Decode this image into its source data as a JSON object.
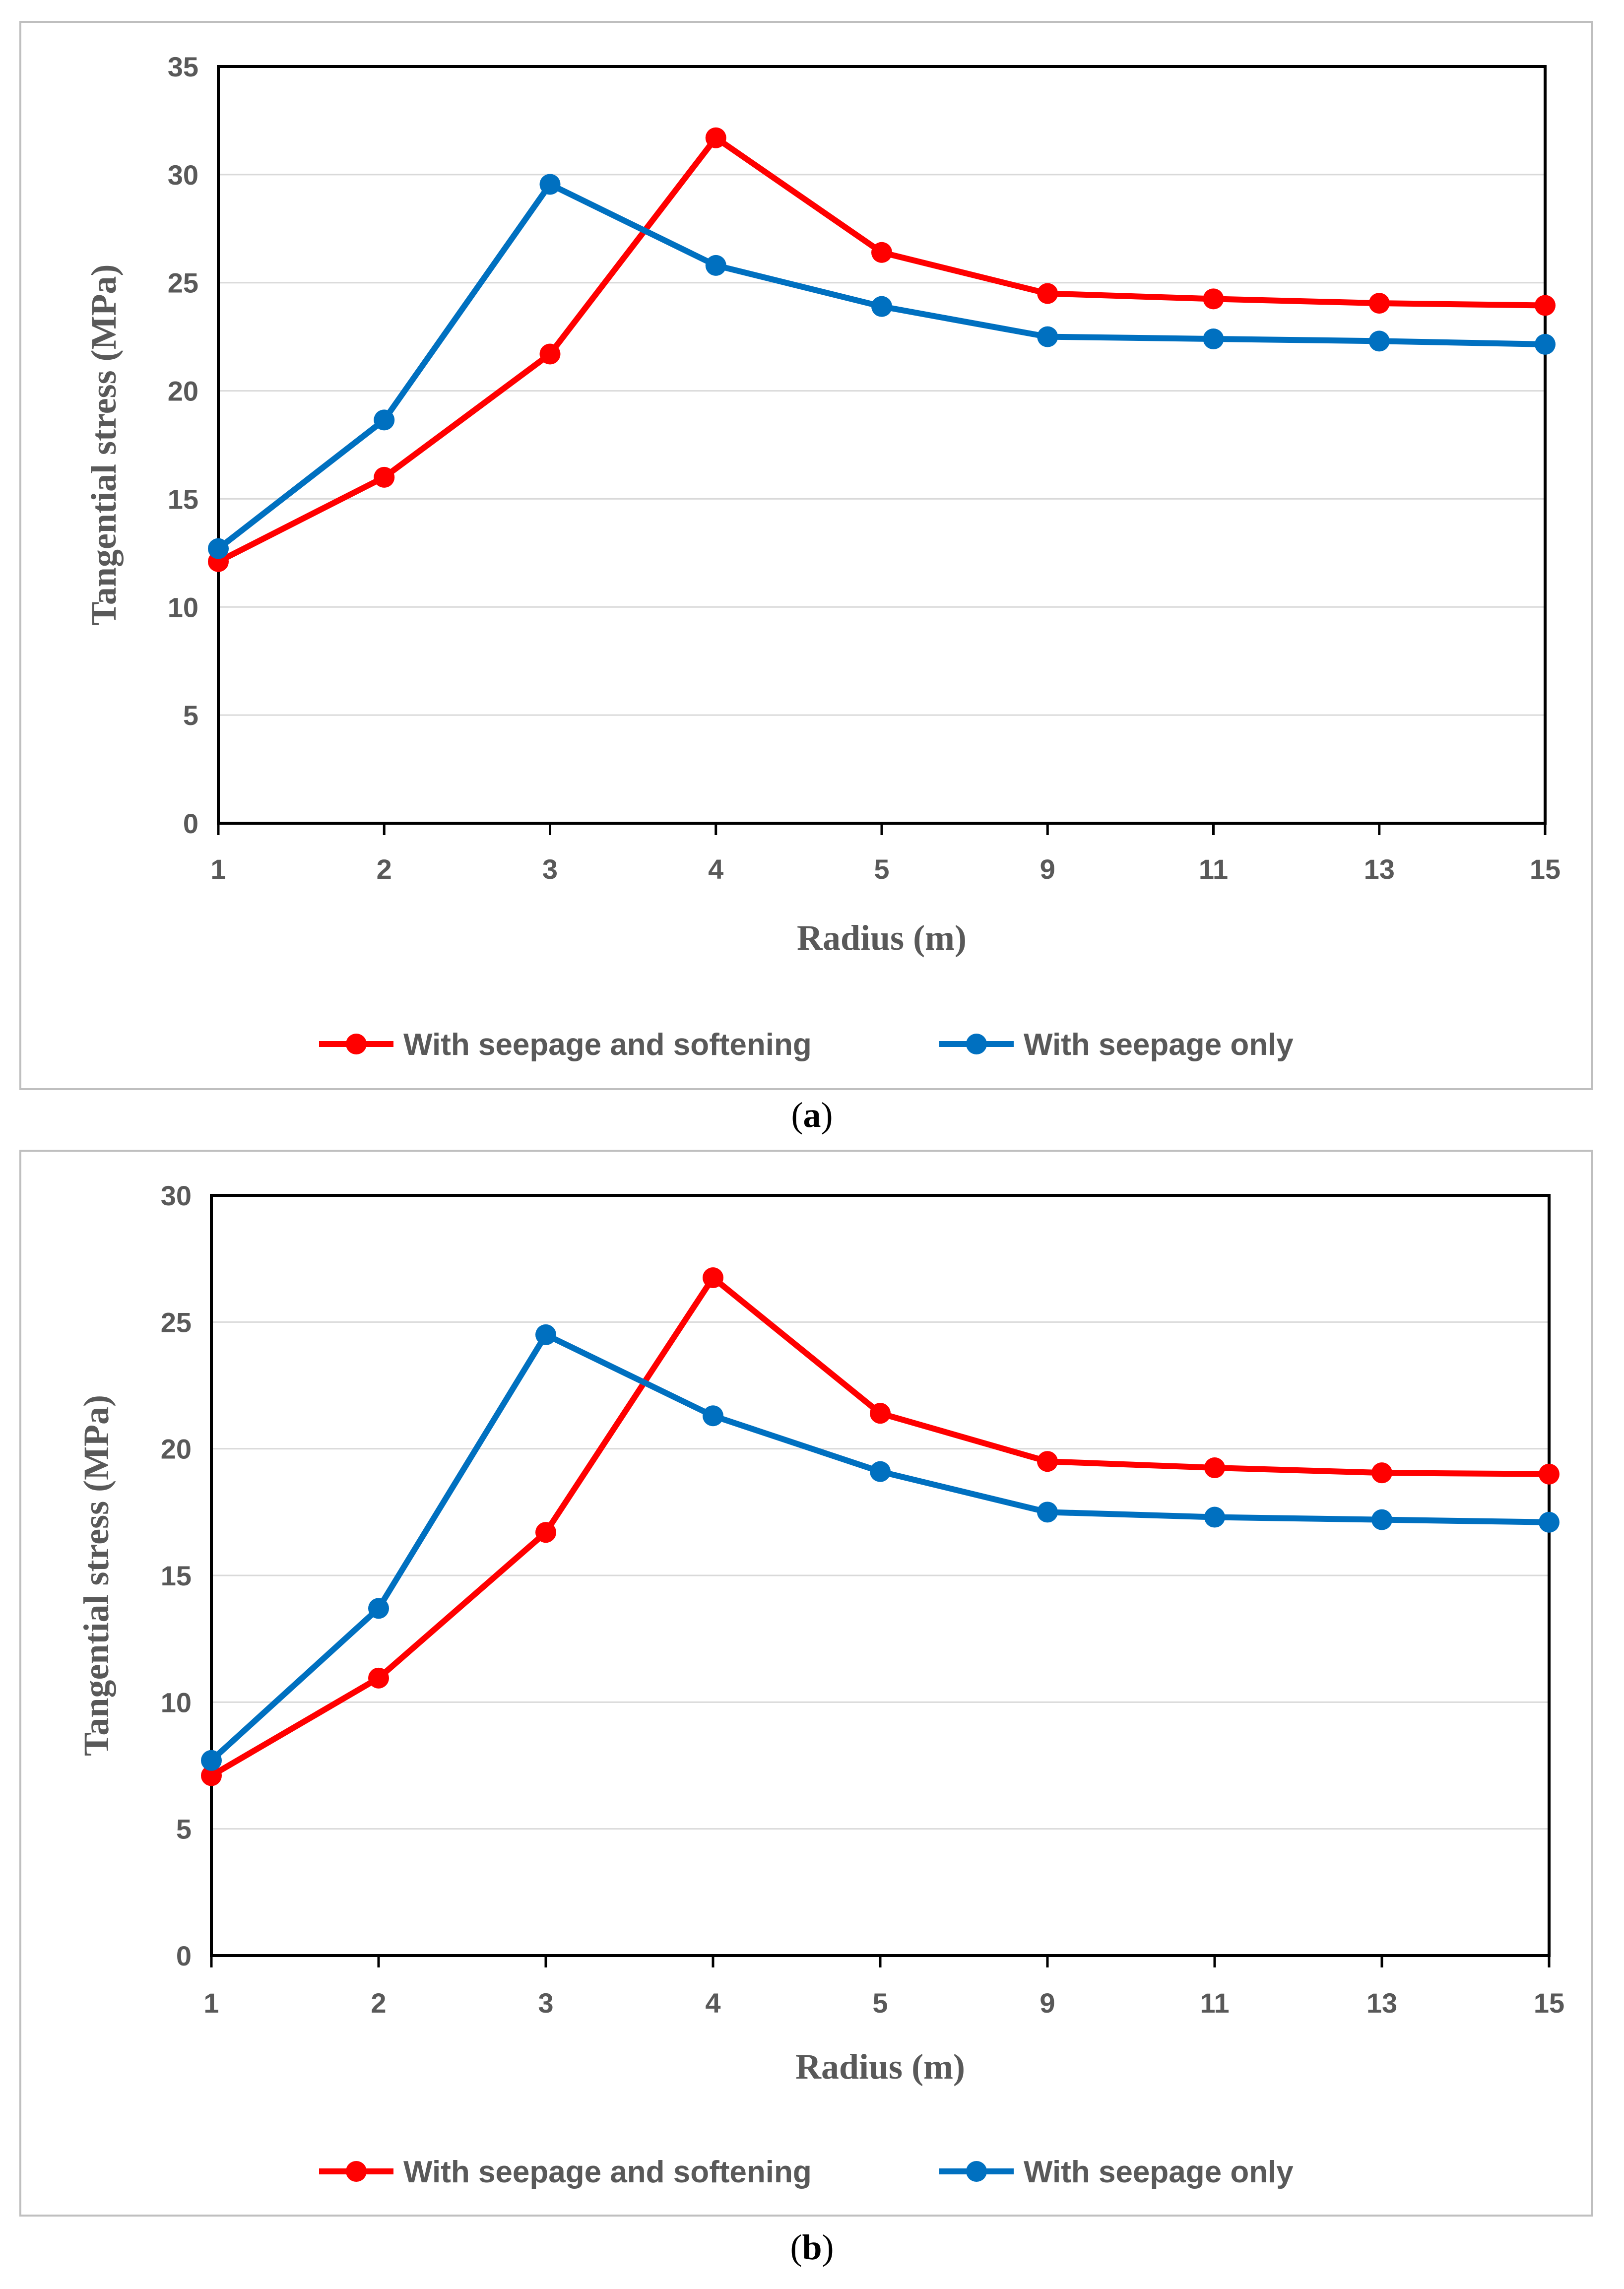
{
  "chart_data": [
    {
      "type": "line",
      "panel": "a",
      "caption": "a",
      "categories": [
        "1",
        "2",
        "3",
        "4",
        "5",
        "9",
        "11",
        "13",
        "15"
      ],
      "series": [
        {
          "name": "With seepage and softening",
          "color": "#ff0000",
          "values": [
            12.1,
            16.0,
            21.7,
            31.7,
            26.4,
            24.5,
            24.25,
            24.05,
            23.95
          ]
        },
        {
          "name": "With seepage only",
          "color": "#0070c0",
          "values": [
            12.7,
            18.65,
            29.55,
            25.8,
            23.9,
            22.5,
            22.4,
            22.3,
            22.15
          ]
        }
      ],
      "xlabel": "Radius (m)",
      "ylabel": "Tangential stress (MPa)",
      "ylim": [
        0,
        35
      ],
      "yticks": [
        "0",
        "5",
        "10",
        "15",
        "20",
        "25",
        "30",
        "35"
      ],
      "grid": true,
      "legend": "bottom"
    },
    {
      "type": "line",
      "panel": "b",
      "caption": "b",
      "categories": [
        "1",
        "2",
        "3",
        "4",
        "5",
        "9",
        "11",
        "13",
        "15"
      ],
      "series": [
        {
          "name": "With seepage and softening",
          "color": "#ff0000",
          "values": [
            7.1,
            10.95,
            16.7,
            26.75,
            21.4,
            19.5,
            19.25,
            19.05,
            19.0
          ]
        },
        {
          "name": "With seepage only",
          "color": "#0070c0",
          "values": [
            7.7,
            13.7,
            24.5,
            21.3,
            19.1,
            17.5,
            17.3,
            17.2,
            17.1
          ]
        }
      ],
      "xlabel": "Radius (m)",
      "ylabel": "Tangential stress (MPa)",
      "ylim": [
        0,
        30
      ],
      "yticks": [
        "0",
        "5",
        "10",
        "15",
        "20",
        "25",
        "30"
      ],
      "grid": true,
      "legend": "bottom"
    }
  ]
}
